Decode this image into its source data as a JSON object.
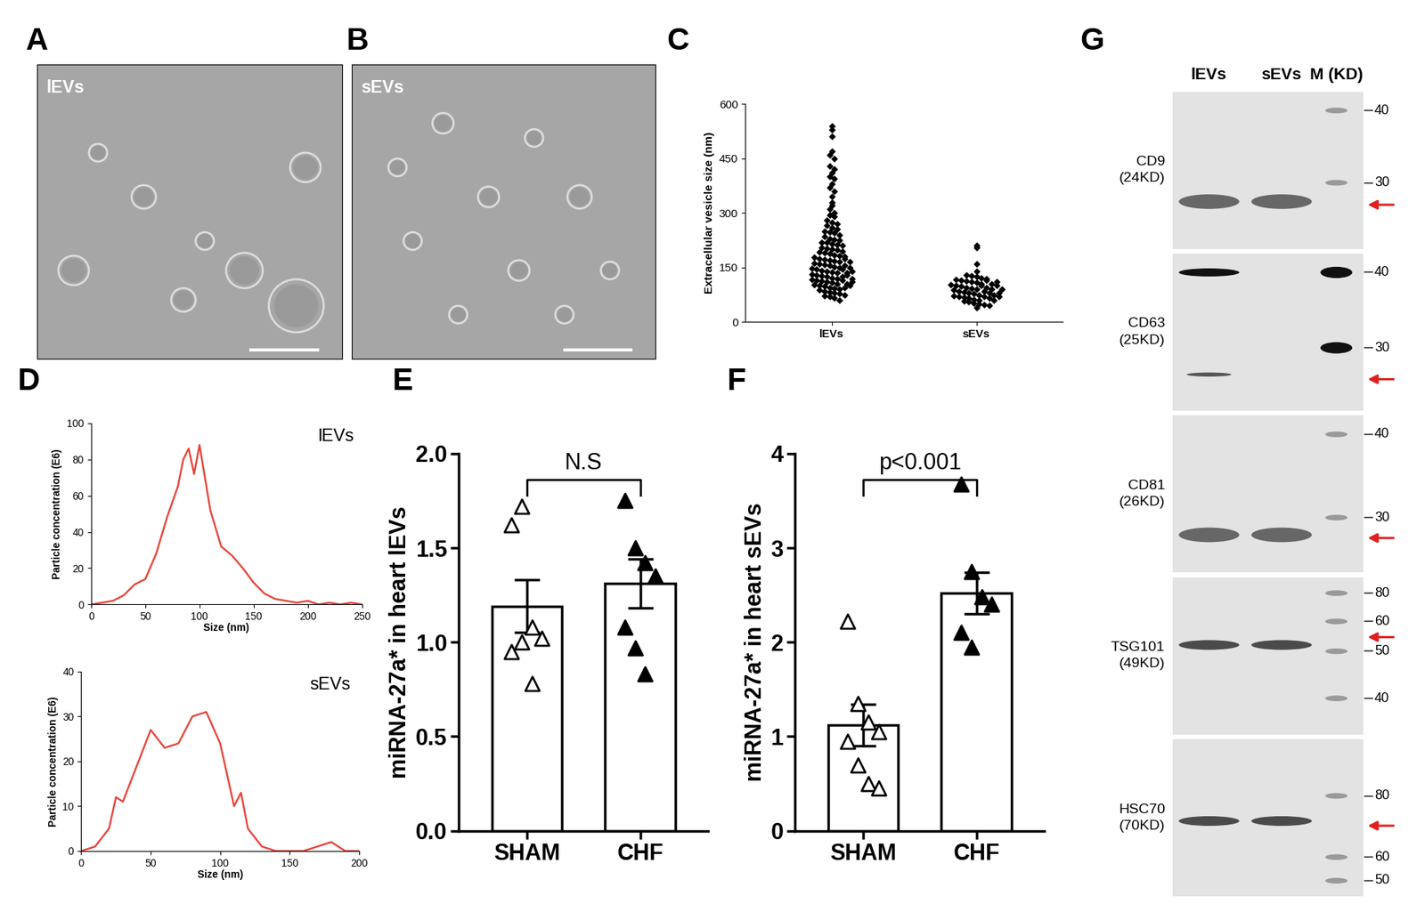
{
  "chart_data": [
    {
      "type": "scatter",
      "panel": "C",
      "categories": [
        "lEVs",
        "sEVs"
      ],
      "y_label": "Extracellular vesicle size (nm)",
      "values": [
        [
          540,
          530,
          510,
          470,
          460,
          450,
          430,
          420,
          410,
          400,
          395,
          380,
          370,
          360,
          345,
          330,
          320,
          310,
          300,
          295,
          290,
          280,
          275,
          270,
          265,
          260,
          255,
          250,
          248,
          245,
          240,
          235,
          230,
          228,
          225,
          220,
          218,
          215,
          212,
          210,
          205,
          202,
          200,
          198,
          195,
          192,
          190,
          188,
          185,
          182,
          180,
          178,
          175,
          172,
          170,
          168,
          165,
          162,
          160,
          158,
          155,
          152,
          150,
          148,
          145,
          142,
          140,
          138,
          135,
          132,
          130,
          128,
          125,
          122,
          120,
          118,
          115,
          112,
          110,
          108,
          105,
          102,
          100,
          98,
          95,
          92,
          90,
          88,
          85,
          82,
          80,
          78,
          75,
          72,
          70,
          65,
          60,
          175,
          165,
          155,
          145,
          135,
          125,
          115,
          105,
          95,
          150,
          140,
          130,
          120,
          110,
          100
        ],
        [
          210,
          205,
          160,
          140,
          130,
          128,
          125,
          122,
          120,
          118,
          115,
          112,
          110,
          108,
          105,
          102,
          100,
          98,
          95,
          92,
          90,
          88,
          85,
          82,
          80,
          78,
          75,
          72,
          70,
          68,
          65,
          62,
          60,
          58,
          55,
          52,
          50,
          48,
          45,
          40,
          115,
          105,
          100,
          95,
          90,
          85,
          80,
          75,
          70,
          65,
          60,
          110,
          100,
          90,
          80,
          70
        ]
      ],
      "color": "#000000",
      "marker": "diamond",
      "ylim": [
        0,
        600
      ],
      "yticks": [
        0,
        150,
        300,
        450,
        600
      ]
    },
    {
      "type": "line",
      "panel": "D",
      "annotation": "lEVs",
      "x_label": "Size (nm)",
      "y_label": "Particle concentration (E6)",
      "x": [
        0,
        10,
        20,
        30,
        40,
        50,
        60,
        70,
        80,
        85,
        90,
        95,
        100,
        105,
        110,
        120,
        130,
        140,
        150,
        160,
        170,
        180,
        190,
        200,
        210,
        220,
        230,
        240,
        250
      ],
      "values": [
        0,
        1,
        2,
        5,
        11,
        14,
        28,
        48,
        65,
        80,
        86,
        72,
        88,
        70,
        52,
        32,
        27,
        20,
        12,
        6,
        3,
        2,
        1,
        2,
        0,
        1,
        0,
        1,
        0
      ],
      "color": "#e8453c",
      "xlim": [
        0,
        250
      ],
      "xticks": [
        0,
        50,
        100,
        150,
        200,
        250
      ],
      "ylim": [
        0,
        100
      ],
      "yticks": [
        0,
        20,
        40,
        60,
        80,
        100
      ]
    },
    {
      "type": "line",
      "annotation": "sEVs",
      "x_label": "Size (nm)",
      "y_label": "Particle concentration (E6)",
      "x": [
        0,
        10,
        20,
        25,
        30,
        40,
        50,
        60,
        70,
        80,
        90,
        100,
        110,
        115,
        120,
        130,
        140,
        150,
        160,
        170,
        180,
        190,
        200
      ],
      "values": [
        0,
        1,
        5,
        12,
        11,
        19,
        27,
        23,
        24,
        30,
        31,
        24,
        10,
        13,
        5,
        1,
        0,
        0,
        0,
        1,
        2,
        0,
        0
      ],
      "color": "#e8453c",
      "xlim": [
        0,
        200
      ],
      "xticks": [
        0,
        50,
        100,
        150,
        200
      ],
      "ylim": [
        0,
        40
      ],
      "yticks": [
        0,
        10,
        20,
        30,
        40
      ]
    },
    {
      "type": "bar",
      "panel": "E",
      "annotation": "N.S",
      "y_label": "miRNA-27a* in heart lEVs",
      "categories": [
        "SHAM",
        "CHF"
      ],
      "values": [
        1.19,
        1.31
      ],
      "errors": [
        0.14,
        0.13
      ],
      "points": [
        [
          1.62,
          1.72,
          1.08,
          1.02,
          0.95,
          1.0,
          0.78
        ],
        [
          1.75,
          1.5,
          1.42,
          1.35,
          1.08,
          0.97,
          0.83
        ]
      ],
      "color": "#ffffff",
      "marker": "triangle",
      "ylim": [
        0,
        2.0
      ],
      "yticks": [
        {
          "value": 0,
          "label": "0.0"
        },
        {
          "value": 0.5,
          "label": "0.5"
        },
        {
          "value": 1,
          "label": "1.0"
        },
        {
          "value": 1.5,
          "label": "1.5"
        },
        {
          "value": 2,
          "label": "2.0"
        }
      ]
    },
    {
      "type": "bar",
      "panel": "F",
      "annotation": "p<0.001",
      "y_label": "miRNA-27a* in heart sEVs",
      "categories": [
        "SHAM",
        "CHF"
      ],
      "values": [
        1.12,
        2.52
      ],
      "errors": [
        0.22,
        0.22
      ],
      "points": [
        [
          2.22,
          1.35,
          1.15,
          1.05,
          0.95,
          0.7,
          0.5,
          0.45
        ],
        [
          3.68,
          2.75,
          2.48,
          2.4,
          2.1,
          1.95
        ]
      ],
      "color": "#ffffff",
      "marker": "triangle",
      "ylim": [
        0,
        4
      ],
      "yticks": [
        0,
        1,
        2,
        3,
        4
      ]
    }
  ],
  "images": [
    {
      "panel": "A",
      "label": "lEVs"
    },
    {
      "panel": "B",
      "label": "sEVs"
    }
  ],
  "blot": {
    "panel": "G",
    "lanes": [
      "lEVs",
      "sEVs",
      "M (KD)"
    ],
    "rows": [
      {
        "name": "CD9",
        "size": "(24KD)",
        "markers": [
          40,
          30
        ]
      },
      {
        "name": "CD63",
        "size": "(25KD)",
        "markers": [
          40,
          30
        ]
      },
      {
        "name": "CD81",
        "size": "(26KD)",
        "markers": [
          40,
          30
        ]
      },
      {
        "name": "TSG101",
        "size": "(49KD)",
        "markers": [
          80,
          60,
          50,
          40
        ]
      },
      {
        "name": "HSC70",
        "size": "(70KD)",
        "markers": [
          80,
          60,
          50
        ]
      }
    ]
  }
}
